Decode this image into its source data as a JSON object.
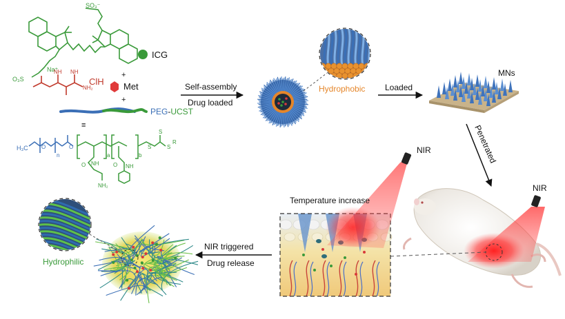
{
  "chem": {
    "sulfonate_top": "SO₃⁻",
    "sulfonate_bottom": "O₃S",
    "sodium": "Na⁺",
    "icg_label": "ICG",
    "clh_label": "ClH",
    "met_label": "Met",
    "plus1": "+",
    "plus2": "+",
    "peg": "PEG",
    "dash": "-",
    "ucst": "UCST",
    "equals": "≡",
    "nh2": "NH₂",
    "nh": "NH",
    "n_label": "N",
    "h3c": "H₃C",
    "o_label": "O",
    "s_label": "S",
    "r_label": "R",
    "n_sub": "n",
    "a_sub": "a",
    "b_sub": "b"
  },
  "steps": {
    "self_assembly": "Self-assembly",
    "drug_loaded": "Drug loaded",
    "hydrophobic": "Hydrophobic",
    "loaded": "Loaded",
    "mns": "MNs",
    "penetrated": "Penetrated",
    "nir_right": "NIR",
    "nir_middle": "NIR",
    "temperature_increase": "Temperature increase",
    "nir_triggered": "NIR triggered",
    "drug_release": "Drug release",
    "hydrophilic": "Hydrophilic"
  },
  "colors": {
    "green": "#3a9a3a",
    "orange": "#e5862a",
    "blue": "#3b6fb6",
    "red": "#d83a3a"
  }
}
